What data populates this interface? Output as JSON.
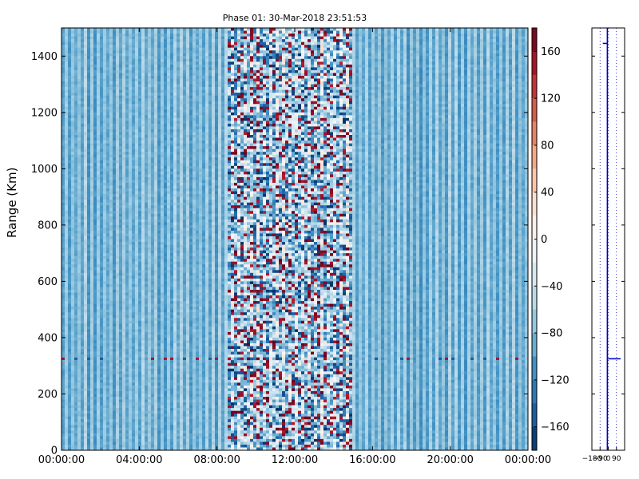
{
  "chart_data": [
    {
      "type": "heatmap",
      "title": "Phase 01: 30-Mar-2018 23:51:53",
      "xlabel": "",
      "ylabel": "Range (Km)",
      "x_ticks": [
        "00:00:00",
        "04:00:00",
        "08:00:00",
        "12:00:00",
        "16:00:00",
        "20:00:00",
        "00:00:00"
      ],
      "x_range_hours": [
        0,
        24
      ],
      "y_ticks": [
        0,
        200,
        400,
        600,
        800,
        1000,
        1200,
        1400
      ],
      "ylim": [
        0,
        1500
      ],
      "colorbar": {
        "ticks": [
          160,
          120,
          80,
          40,
          0,
          -40,
          -80,
          -120,
          -160
        ],
        "range": [
          -180,
          180
        ],
        "colormap": "RdBu_r"
      },
      "description_of_values": {
        "background_phase_deg": -80,
        "noisy_band_hours": [
          8.5,
          15.0
        ],
        "noisy_band_range_deg": [
          -180,
          180
        ],
        "dotted_row_range_km": 325
      }
    },
    {
      "type": "line",
      "x_ticks": [
        "-180",
        "-90",
        "0",
        "90"
      ],
      "xlim": [
        -180,
        180
      ],
      "ylim": [
        0,
        1500
      ],
      "grid": true,
      "series": [
        {
          "points": [
            [
              -10,
              1500
            ],
            [
              -10,
              0
            ]
          ]
        },
        {
          "points": [
            [
              -60,
              1445
            ],
            [
              -10,
              1445
            ]
          ]
        },
        {
          "points": [
            [
              0,
              325
            ],
            [
              135,
              325
            ]
          ]
        }
      ]
    }
  ],
  "colors": {
    "axis": "#000000",
    "series_line": "#0000cc",
    "grid_line": "#0000cc"
  }
}
